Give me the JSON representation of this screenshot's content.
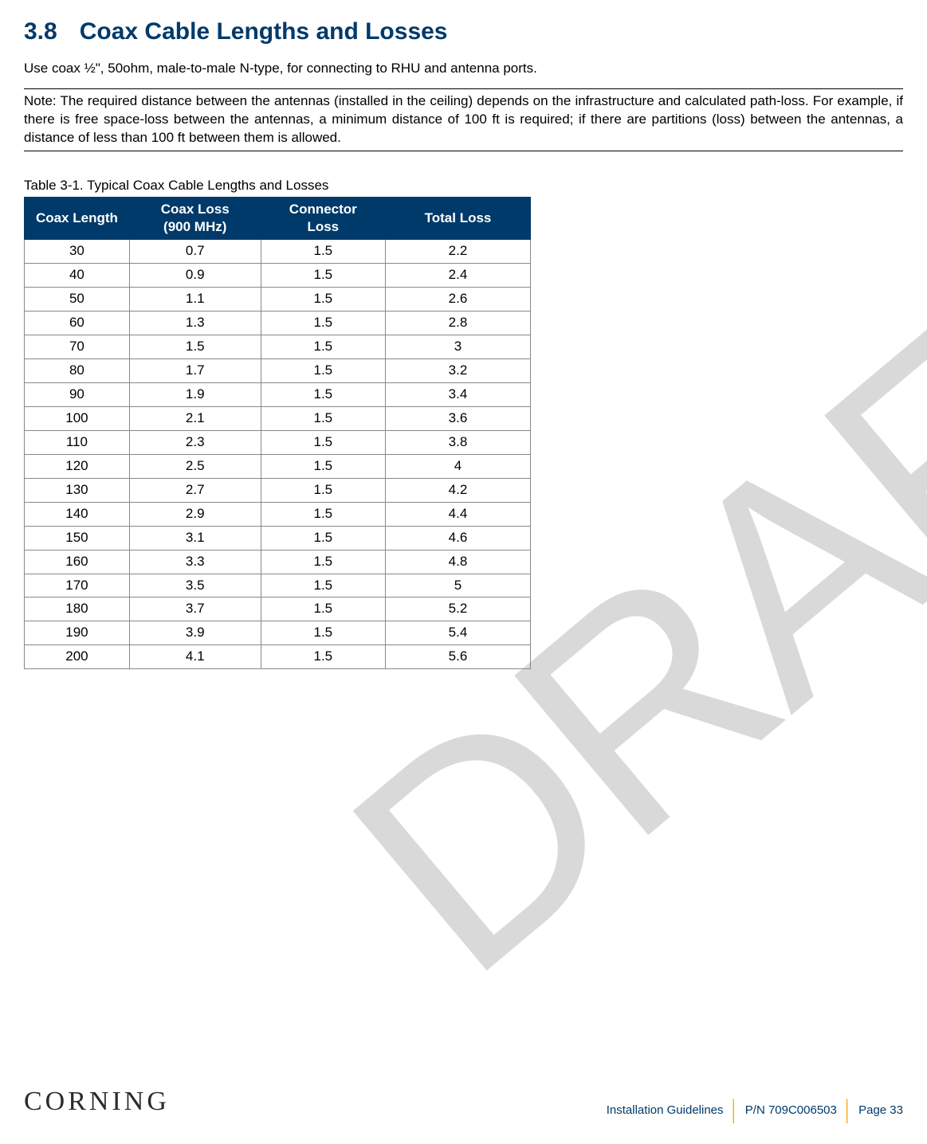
{
  "watermark": "DRAFT",
  "section": {
    "number": "3.8",
    "title": "Coax Cable Lengths and Losses"
  },
  "intro": "Use coax ½\", 50ohm, male-to-male N-type, for connecting to RHU and antenna ports.",
  "note": "Note: The required distance between the antennas (installed in the ceiling) depends on the infrastructure and calculated path-loss. For example, if there is free space-loss between the antennas, a minimum distance of 100 ft is required; if there are partitions (loss) between the antennas, a distance of less than 100 ft between them is allowed.",
  "table": {
    "caption": "Table 3-1. Typical Coax Cable Lengths and Losses",
    "columns": [
      "Coax Length",
      "Coax Loss (900 MHz)",
      "Connector Loss",
      "Total Loss"
    ],
    "header_bg": "#003a6a",
    "header_fg": "#ffffff",
    "border_color": "#888888",
    "rows": [
      [
        "30",
        "0.7",
        "1.5",
        "2.2"
      ],
      [
        "40",
        "0.9",
        "1.5",
        "2.4"
      ],
      [
        "50",
        "1.1",
        "1.5",
        "2.6"
      ],
      [
        "60",
        "1.3",
        "1.5",
        "2.8"
      ],
      [
        "70",
        "1.5",
        "1.5",
        "3"
      ],
      [
        "80",
        "1.7",
        "1.5",
        "3.2"
      ],
      [
        "90",
        "1.9",
        "1.5",
        "3.4"
      ],
      [
        "100",
        "2.1",
        "1.5",
        "3.6"
      ],
      [
        "110",
        "2.3",
        "1.5",
        "3.8"
      ],
      [
        "120",
        "2.5",
        "1.5",
        "4"
      ],
      [
        "130",
        "2.7",
        "1.5",
        "4.2"
      ],
      [
        "140",
        "2.9",
        "1.5",
        "4.4"
      ],
      [
        "150",
        "3.1",
        "1.5",
        "4.6"
      ],
      [
        "160",
        "3.3",
        "1.5",
        "4.8"
      ],
      [
        "170",
        "3.5",
        "1.5",
        "5"
      ],
      [
        "180",
        "3.7",
        "1.5",
        "5.2"
      ],
      [
        "190",
        "3.9",
        "1.5",
        "5.4"
      ],
      [
        "200",
        "4.1",
        "1.5",
        "5.6"
      ]
    ]
  },
  "footer": {
    "logo": "CORNING",
    "doc": "Installation Guidelines",
    "pn": "P/N 709C006503",
    "page": "Page 33"
  }
}
